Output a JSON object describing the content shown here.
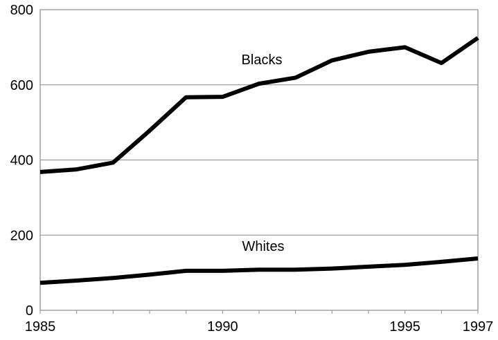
{
  "chart_data": {
    "type": "line",
    "x": [
      1985,
      1986,
      1987,
      1988,
      1989,
      1990,
      1991,
      1992,
      1993,
      1994,
      1995,
      1996,
      1997
    ],
    "series": [
      {
        "name": "Blacks",
        "values": [
          368,
          375,
          393,
          478,
          567,
          568,
          603,
          619,
          665,
          688,
          700,
          658,
          725
        ]
      },
      {
        "name": "Whites",
        "values": [
          73,
          79,
          86,
          95,
          105,
          105,
          108,
          108,
          111,
          116,
          121,
          129,
          138
        ]
      }
    ],
    "xlim": [
      1985,
      1997
    ],
    "ylim": [
      0,
      800
    ],
    "xticks": [
      "1985",
      "1990",
      "1995",
      "1997"
    ],
    "yticks": [
      "0",
      "200",
      "400",
      "600",
      "800"
    ],
    "grid": "horizontal",
    "line_color": "#000000",
    "grid_color": "#8c8c8c"
  }
}
